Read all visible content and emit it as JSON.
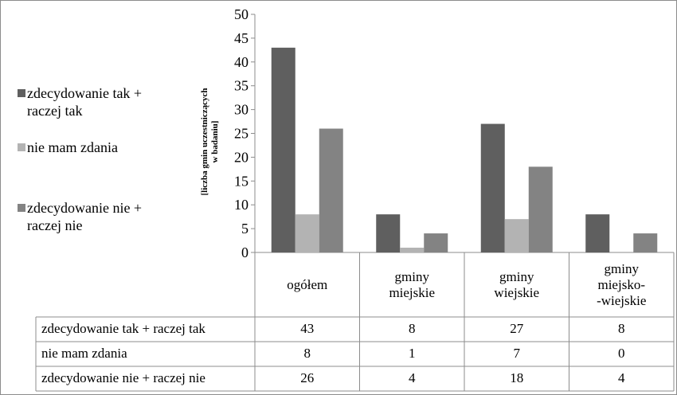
{
  "chart_data": {
    "type": "bar",
    "ylabel": "[liczba gmin uczestniczących\nw badaniu]",
    "ylim": [
      0,
      50
    ],
    "yticks": [
      0,
      5,
      10,
      15,
      20,
      25,
      30,
      35,
      40,
      45,
      50
    ],
    "categories": [
      "ogółem",
      "gminy\nmiejskie",
      "gminy\nwiejskie",
      "gminy\nmiejsko-\n-wiejskie"
    ],
    "series": [
      {
        "name": "zdecydowanie tak + raczej tak",
        "table_name": "zdecydowanie tak + raczej tak",
        "legend_label": "zdecydowanie tak +\nraczej tak",
        "color": "#5f5f5f",
        "values": [
          43,
          8,
          27,
          8
        ]
      },
      {
        "name": "nie mam zdania",
        "table_name": "nie mam zdania",
        "legend_label": "nie mam zdania",
        "color": "#b3b3b3",
        "values": [
          8,
          1,
          7,
          0
        ]
      },
      {
        "name": "zdecydowanie nie + raczej nie",
        "table_name": "zdecydowanie nie + raczej nie",
        "legend_label": "zdecydowanie nie +\nraczej nie",
        "color": "#838383",
        "values": [
          26,
          4,
          18,
          4
        ]
      }
    ],
    "legend_position": "left",
    "grid": false,
    "data_table": true
  }
}
